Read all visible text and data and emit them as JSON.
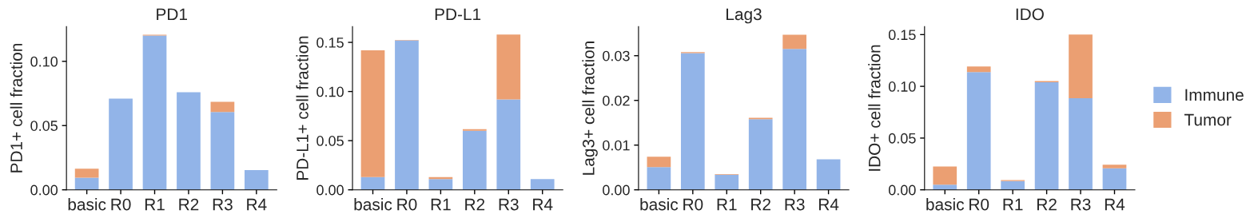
{
  "chart_data": [
    {
      "type": "bar",
      "title": "PD1",
      "ylabel": "PD1+ cell fraction",
      "stacked": true,
      "categories": [
        "basic",
        "R0",
        "R1",
        "R2",
        "R3",
        "R4"
      ],
      "ylim": [
        0,
        0.127
      ],
      "yticks": [
        {
          "value": 0,
          "label": "0.00"
        },
        {
          "value": 0.05,
          "label": "0.05"
        },
        {
          "value": 0.1,
          "label": "0.10"
        }
      ],
      "grid": false,
      "series": [
        {
          "color": "#92b4e8",
          "values": [
            0.0095,
            0.071,
            0.12,
            0.076,
            0.0605,
            0.0153
          ]
        },
        {
          "color": "#eb9f72",
          "values": [
            0.0069,
            null,
            0.0007,
            null,
            0.008,
            null
          ]
        }
      ]
    },
    {
      "type": "bar",
      "title": "PD-L1",
      "ylabel": "PD-L1+ cell fraction",
      "stacked": true,
      "categories": [
        "basic",
        "R0",
        "R1",
        "R2",
        "R3",
        "R4"
      ],
      "ylim": [
        0,
        0.166
      ],
      "yticks": [
        {
          "value": 0,
          "label": "0.00"
        },
        {
          "value": 0.05,
          "label": "0.05"
        },
        {
          "value": 0.1,
          "label": "0.10"
        },
        {
          "value": 0.15,
          "label": "0.15"
        }
      ],
      "grid": false,
      "series": [
        {
          "color": "#92b4e8",
          "values": [
            0.013,
            0.152,
            0.011,
            0.06,
            0.092,
            0.011
          ]
        },
        {
          "color": "#eb9f72",
          "values": [
            0.129,
            0.0005,
            0.002,
            0.0016,
            0.066,
            null
          ]
        }
      ]
    },
    {
      "type": "bar",
      "title": "Lag3",
      "ylabel": "Lag3+ cell fraction",
      "stacked": true,
      "categories": [
        "basic",
        "R0",
        "R1",
        "R2",
        "R3",
        "R4"
      ],
      "ylim": [
        0,
        0.0365
      ],
      "yticks": [
        {
          "value": 0,
          "label": "0.00"
        },
        {
          "value": 0.01,
          "label": "0.01"
        },
        {
          "value": 0.02,
          "label": "0.02"
        },
        {
          "value": 0.03,
          "label": "0.03"
        }
      ],
      "grid": false,
      "series": [
        {
          "color": "#92b4e8",
          "values": [
            0.0051,
            0.0306,
            0.0034,
            0.0158,
            0.0315,
            0.0068
          ]
        },
        {
          "color": "#eb9f72",
          "values": [
            0.0023,
            0.0002,
            0.0001,
            0.0003,
            0.0032,
            null
          ]
        }
      ]
    },
    {
      "type": "bar",
      "title": "IDO",
      "ylabel": "IDO+ cell fraction",
      "stacked": true,
      "categories": [
        "basic",
        "R0",
        "R1",
        "R2",
        "R3",
        "R4"
      ],
      "ylim": [
        0,
        0.1577
      ],
      "yticks": [
        {
          "value": 0,
          "label": "0.00"
        },
        {
          "value": 0.05,
          "label": "0.05"
        },
        {
          "value": 0.1,
          "label": "0.10"
        },
        {
          "value": 0.15,
          "label": "0.15"
        }
      ],
      "grid": false,
      "legend": "right",
      "series": [
        {
          "name": "Immune",
          "color": "#92b4e8",
          "values": [
            0.0049,
            0.1137,
            0.0085,
            0.1039,
            0.0885,
            0.0208
          ]
        },
        {
          "name": "Tumor",
          "color": "#eb9f72",
          "values": [
            0.0177,
            0.0054,
            0.001,
            0.0013,
            0.0615,
            0.0034
          ]
        }
      ]
    }
  ]
}
